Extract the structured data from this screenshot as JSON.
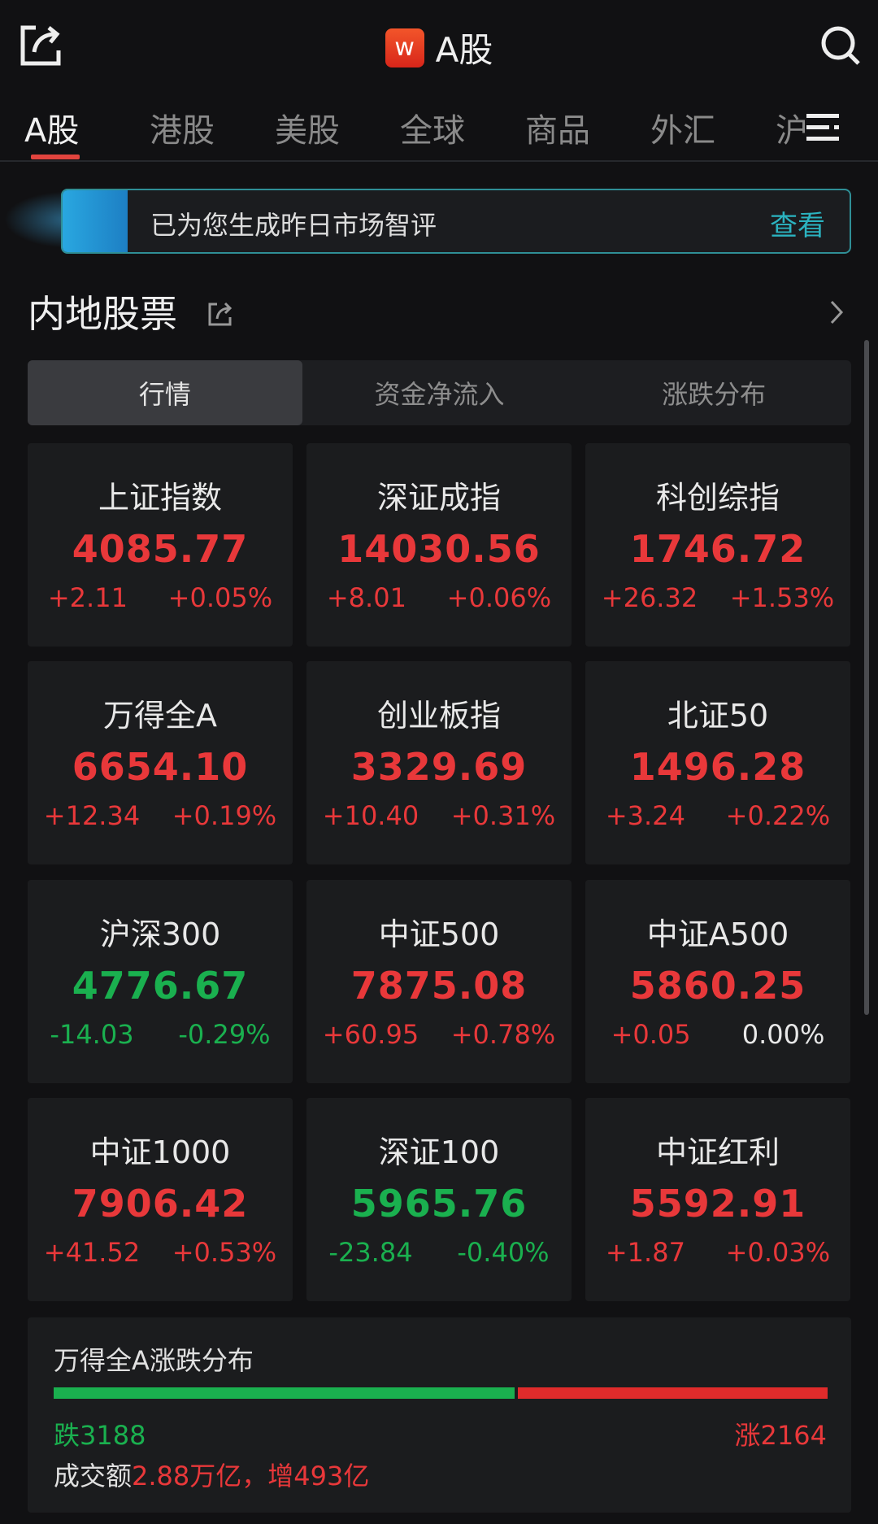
{
  "header": {
    "title": "A股",
    "logo_letter": "w",
    "share_icon": "share-icon",
    "search_icon": "search-icon"
  },
  "tabs": [
    {
      "label": "A股",
      "active": true
    },
    {
      "label": "港股"
    },
    {
      "label": "美股"
    },
    {
      "label": "全球"
    },
    {
      "label": "商品"
    },
    {
      "label": "外汇"
    },
    {
      "label": "沪"
    }
  ],
  "banner": {
    "text": "已为您生成昨日市场智评",
    "action": "查看"
  },
  "section": {
    "title": "内地股票"
  },
  "segments": [
    {
      "label": "行情",
      "active": true
    },
    {
      "label": "资金净流入"
    },
    {
      "label": "涨跌分布"
    }
  ],
  "colors": {
    "up": "#e8383a",
    "down": "#1ab04f",
    "accent": "#e2443e",
    "link": "#2bb3c0"
  },
  "indices": [
    {
      "name": "上证指数",
      "value": "4085.77",
      "change": "+2.11",
      "pct": "+0.05%",
      "dir": "up"
    },
    {
      "name": "深证成指",
      "value": "14030.56",
      "change": "+8.01",
      "pct": "+0.06%",
      "dir": "up"
    },
    {
      "name": "科创综指",
      "value": "1746.72",
      "change": "+26.32",
      "pct": "+1.53%",
      "dir": "up"
    },
    {
      "name": "万得全A",
      "value": "6654.10",
      "change": "+12.34",
      "pct": "+0.19%",
      "dir": "up"
    },
    {
      "name": "创业板指",
      "value": "3329.69",
      "change": "+10.40",
      "pct": "+0.31%",
      "dir": "up"
    },
    {
      "name": "北证50",
      "value": "1496.28",
      "change": "+3.24",
      "pct": "+0.22%",
      "dir": "up"
    },
    {
      "name": "沪深300",
      "value": "4776.67",
      "change": "-14.03",
      "pct": "-0.29%",
      "dir": "dn"
    },
    {
      "name": "中证500",
      "value": "7875.08",
      "change": "+60.95",
      "pct": "+0.78%",
      "dir": "up"
    },
    {
      "name": "中证A500",
      "value": "5860.25",
      "change": "+0.05",
      "pct": "0.00%",
      "dir": "up",
      "pct_dir": "fl"
    },
    {
      "name": "中证1000",
      "value": "7906.42",
      "change": "+41.52",
      "pct": "+0.53%",
      "dir": "up"
    },
    {
      "name": "深证100",
      "value": "5965.76",
      "change": "-23.84",
      "pct": "-0.40%",
      "dir": "dn"
    },
    {
      "name": "中证红利",
      "value": "5592.91",
      "change": "+1.87",
      "pct": "+0.03%",
      "dir": "up"
    }
  ],
  "distribution": {
    "title": "万得全A涨跌分布",
    "down_label": "跌3188",
    "up_label": "涨2164",
    "down": 3188,
    "up": 2164,
    "turnover_label": "成交额",
    "turnover_value": "2.88万亿，增493亿"
  }
}
